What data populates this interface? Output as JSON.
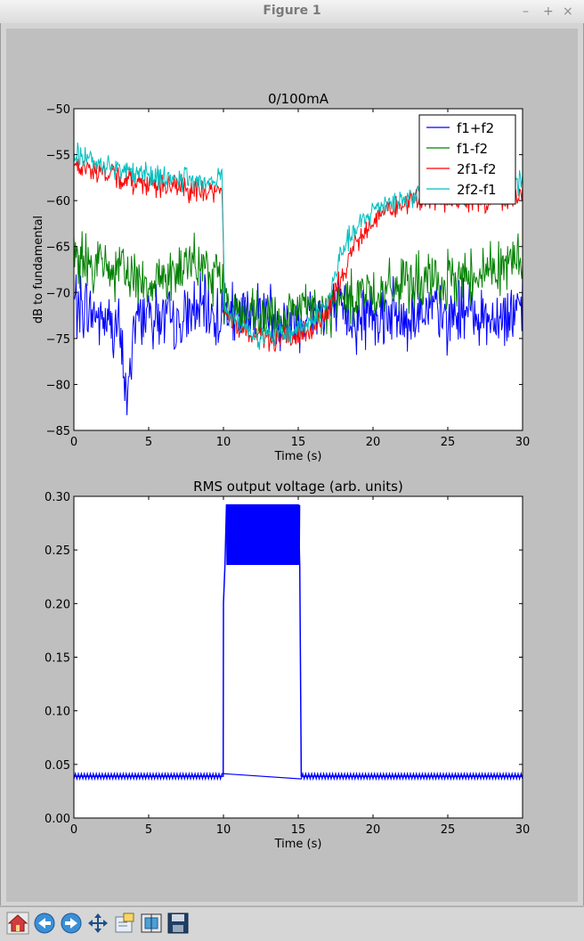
{
  "window": {
    "title": "Figure 1",
    "minimize": "–",
    "maximize": "+",
    "close": "×"
  },
  "toolbar": {
    "buttons": [
      {
        "name": "home-button",
        "icon": "home-icon"
      },
      {
        "name": "back-button",
        "icon": "back-arrow-icon"
      },
      {
        "name": "forward-button",
        "icon": "forward-arrow-icon"
      },
      {
        "name": "pan-button",
        "icon": "pan-icon"
      },
      {
        "name": "zoom-button",
        "icon": "zoom-rect-icon"
      },
      {
        "name": "subplots-button",
        "icon": "subplots-icon"
      },
      {
        "name": "save-button",
        "icon": "save-icon"
      }
    ]
  },
  "chart_data": [
    {
      "type": "line",
      "title": "0/100mA",
      "xlabel": "Time (s)",
      "ylabel": "dB to fundamental",
      "xlim": [
        0,
        30
      ],
      "ylim": [
        -85,
        -50
      ],
      "xticks": [
        0,
        5,
        10,
        15,
        20,
        25,
        30
      ],
      "yticks": [
        -85,
        -80,
        -75,
        -70,
        -65,
        -60,
        -55,
        -50
      ],
      "legend_position": "top-right",
      "series": [
        {
          "name": "f1+f2",
          "color": "#0000ff",
          "x": [
            0,
            1,
            2,
            3,
            3.6,
            4,
            5,
            6,
            7,
            8,
            9,
            9.8,
            10.2,
            11,
            12,
            13,
            14,
            15,
            16,
            17,
            18,
            19,
            20,
            21,
            22,
            23,
            24,
            25,
            26,
            27,
            28,
            29,
            30
          ],
          "y": [
            -71,
            -72,
            -73,
            -74,
            -82,
            -73,
            -72,
            -73,
            -74,
            -72,
            -72,
            -73,
            -72,
            -73,
            -72,
            -72,
            -73,
            -73,
            -72,
            -72,
            -72,
            -73,
            -72,
            -72,
            -73,
            -72,
            -72,
            -73,
            -72,
            -72,
            -73,
            -72,
            -72
          ]
        },
        {
          "name": "f1-f2",
          "color": "#008000",
          "x": [
            0,
            1,
            2,
            3,
            4,
            5,
            6,
            7,
            8,
            9,
            9.8,
            10.2,
            11,
            12,
            13,
            14,
            15,
            16,
            17,
            18,
            19,
            20,
            21,
            22,
            23,
            24,
            25,
            26,
            27,
            28,
            29,
            30
          ],
          "y": [
            -66,
            -67,
            -67,
            -68,
            -68,
            -69,
            -68,
            -68,
            -67,
            -68,
            -68,
            -71,
            -72,
            -73,
            -73,
            -73,
            -72,
            -72,
            -72,
            -71,
            -70,
            -70,
            -70,
            -69,
            -69,
            -69,
            -69,
            -68,
            -68,
            -67,
            -67,
            -66
          ]
        },
        {
          "name": "2f1-f2",
          "color": "#ff0000",
          "x": [
            0,
            1,
            2,
            3,
            4,
            5,
            6,
            7,
            8,
            9,
            9.9,
            10.1,
            11,
            12,
            13,
            14,
            15,
            16,
            17,
            17.5,
            18,
            19,
            20,
            21,
            22,
            23,
            24,
            25,
            26,
            27,
            28,
            29,
            30
          ],
          "y": [
            -56,
            -56.5,
            -57,
            -57.5,
            -58,
            -58,
            -58.5,
            -58.5,
            -59,
            -59,
            -59,
            -72,
            -74,
            -74.5,
            -75,
            -75,
            -75,
            -74,
            -72,
            -70,
            -68,
            -64,
            -62,
            -61,
            -60.5,
            -60,
            -60,
            -60,
            -60,
            -60,
            -60,
            -59.5,
            -59.5
          ]
        },
        {
          "name": "2f2-f1",
          "color": "#00bfbf",
          "x": [
            0,
            1,
            2,
            3,
            4,
            5,
            6,
            7,
            8,
            9,
            9.9,
            10.1,
            11,
            12,
            13,
            14,
            15,
            16,
            17,
            17.5,
            18,
            19,
            20,
            21,
            22,
            23,
            24,
            25,
            26,
            27,
            28,
            29,
            30
          ],
          "y": [
            -55,
            -55.5,
            -56,
            -56.5,
            -57,
            -57,
            -57.5,
            -57.5,
            -58,
            -58,
            -57,
            -72,
            -73,
            -74.5,
            -75,
            -74.5,
            -74,
            -73,
            -71,
            -68,
            -65,
            -63,
            -61,
            -60,
            -60,
            -59,
            -59,
            -59,
            -59,
            -59,
            -59,
            -59,
            -58
          ]
        }
      ]
    },
    {
      "type": "line",
      "title": "RMS output voltage (arb. units)",
      "xlabel": "Time (s)",
      "ylabel": "",
      "xlim": [
        0,
        30
      ],
      "ylim": [
        0.0,
        0.3
      ],
      "xticks": [
        0,
        5,
        10,
        15,
        20,
        25,
        30
      ],
      "yticks": [
        "0.00",
        "0.05",
        "0.10",
        "0.15",
        "0.20",
        "0.25",
        "0.30"
      ],
      "series": [
        {
          "color": "#0000ff",
          "x": [
            0,
            9.98,
            10.0,
            10.1,
            10.2,
            15.0,
            15.1,
            15.2,
            30
          ],
          "y": [
            0.039,
            0.039,
            0.2,
            0.236,
            0.292,
            0.292,
            0.236,
            0.039,
            0.039
          ],
          "band": {
            "x_start": 10.2,
            "x_end": 15.1,
            "y_low": 0.236,
            "y_high": 0.292
          }
        }
      ]
    }
  ]
}
